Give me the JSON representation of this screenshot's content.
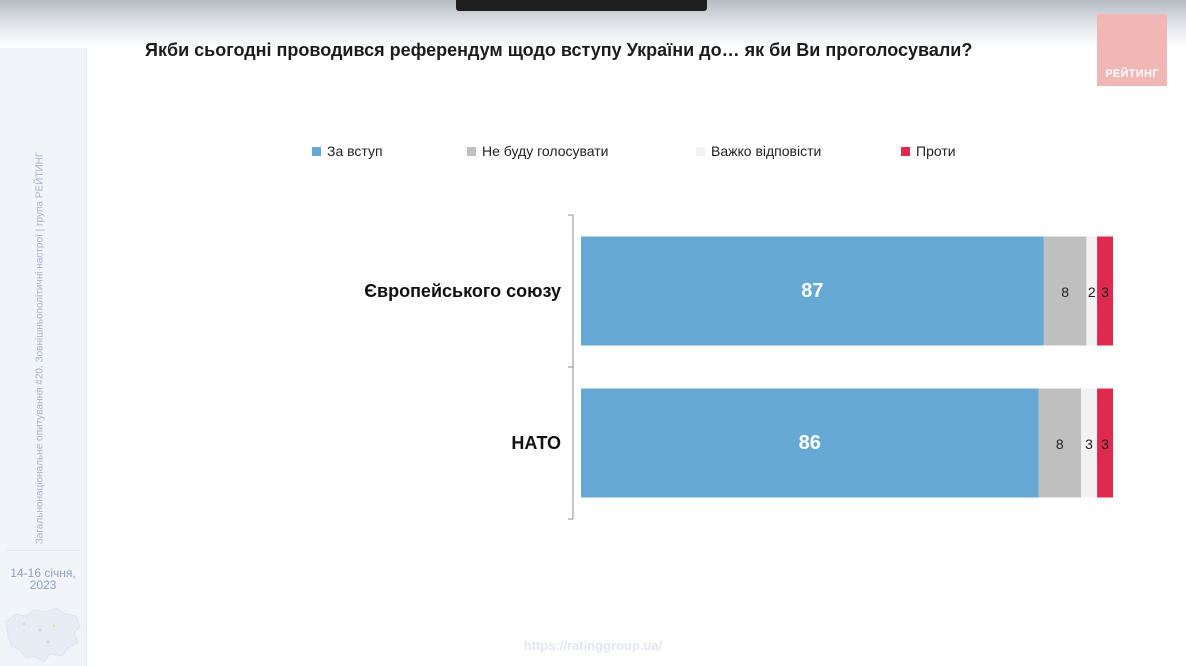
{
  "title": "Якби сьогодні проводився референдум щодо вступу України до… як би Ви проголосували?",
  "logo_text": "РЕЙТИНГ",
  "sidebar": {
    "vertical_text": "Загальнонаціональне опитування #20. Зовнішньополітичні настрої | група РЕЙТИНГ",
    "date": "14-16 січня,\n2023"
  },
  "footer_url": "https://ratinggroup.ua/",
  "colors": {
    "za": "#67a9d5",
    "ne_budu": "#bfbfbf",
    "vazhko": "#f2f2f2",
    "proty": "#e0294f"
  },
  "chart_data": {
    "type": "bar",
    "orientation": "horizontal",
    "stacked": true,
    "categories": [
      "Європейського союзу",
      "НАТО"
    ],
    "series": [
      {
        "name": "За вступ",
        "values": [
          87,
          86
        ],
        "color": "#67a9d5"
      },
      {
        "name": "Не буду голосувати",
        "values": [
          8,
          8
        ],
        "color": "#bfbfbf"
      },
      {
        "name": "Важко відповісти",
        "values": [
          2,
          3
        ],
        "color": "#f2f2f2"
      },
      {
        "name": "Проти",
        "values": [
          3,
          3
        ],
        "color": "#e0294f"
      }
    ],
    "legend_position": "top",
    "xlim": [
      0,
      100
    ],
    "grid": false
  }
}
